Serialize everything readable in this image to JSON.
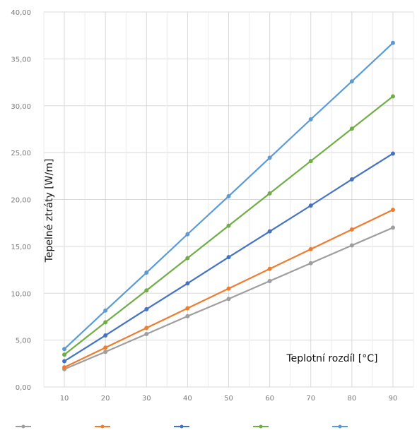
{
  "chart_data": {
    "type": "line",
    "title": "",
    "xlabel": "Teplotní rozdíl [°C]",
    "ylabel": "Tepelné ztráty [W/m]",
    "x": [
      10,
      20,
      30,
      40,
      50,
      60,
      70,
      80,
      90
    ],
    "xlim": [
      5,
      95
    ],
    "ylim": [
      0,
      40
    ],
    "yticks": [
      "0,00",
      "5,00",
      "10,00",
      "15,00",
      "20,00",
      "25,00",
      "30,00",
      "35,00",
      "40,00"
    ],
    "grid": true,
    "legend_position": "bottom",
    "series": [
      {
        "name": "",
        "color": "#9e9e9e",
        "values": [
          1.9,
          3.75,
          5.65,
          7.55,
          9.4,
          11.3,
          13.2,
          15.1,
          17.0
        ]
      },
      {
        "name": "",
        "color": "#ed7d31",
        "values": [
          2.1,
          4.2,
          6.3,
          8.4,
          10.5,
          12.6,
          14.7,
          16.8,
          18.9
        ]
      },
      {
        "name": "",
        "color": "#4472c4",
        "values": [
          2.75,
          5.5,
          8.3,
          11.05,
          13.85,
          16.6,
          19.35,
          22.15,
          24.9
        ]
      },
      {
        "name": "",
        "color": "#70ad47",
        "values": [
          3.45,
          6.9,
          10.3,
          13.75,
          17.2,
          20.65,
          24.1,
          27.55,
          31.0
        ]
      },
      {
        "name": "",
        "color": "#5b9bd5",
        "values": [
          4.05,
          8.15,
          12.2,
          16.3,
          20.35,
          24.45,
          28.55,
          32.6,
          36.7
        ]
      }
    ]
  }
}
